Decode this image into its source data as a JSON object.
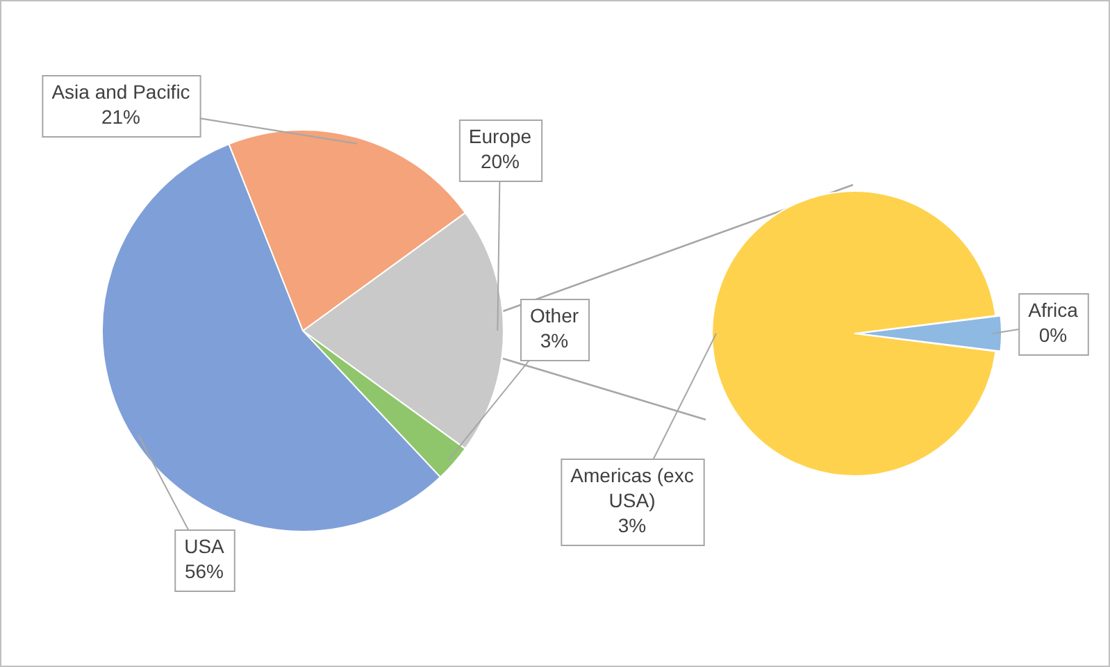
{
  "chart_data": [
    {
      "type": "pie",
      "categories": [
        "Europe",
        "Other",
        "USA",
        "Asia and Pacific"
      ],
      "values": [
        20,
        3,
        56,
        21
      ],
      "colors": [
        "#c9c9c9",
        "#8fc66b",
        "#7f9fd8",
        "#f4a37a"
      ],
      "value_labels": [
        "20%",
        "3%",
        "56%",
        "21%"
      ]
    },
    {
      "type": "pie",
      "categories": [
        "Africa",
        "Americas (exc USA)"
      ],
      "values": [
        0.12,
        2.88
      ],
      "colors": [
        "#8db9e3",
        "#ffd24d"
      ],
      "value_labels": [
        "0%",
        "3%"
      ]
    }
  ]
}
